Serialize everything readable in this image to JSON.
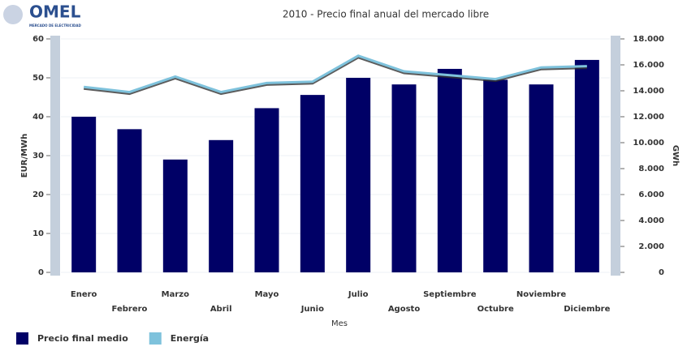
{
  "logo": {
    "name": "OMEL",
    "subtitle": "MERCADO DE ELECTRICIDAD"
  },
  "chart_data": {
    "type": "bar-line",
    "title": "2010 - Precio final anual del mercado libre",
    "x_label": "Mes",
    "y_label": "EUR/MWh",
    "y2_label": "GWh",
    "categories": [
      "Enero",
      "Febrero",
      "Marzo",
      "Abril",
      "Mayo",
      "Junio",
      "Julio",
      "Agosto",
      "Septiembre",
      "Octubre",
      "Noviembre",
      "Diciembre"
    ],
    "series": [
      {
        "name": "Precio final medio",
        "color": "#000066",
        "type": "bar",
        "values": [
          40,
          36.8,
          29,
          34,
          42.2,
          45.6,
          50,
          48.3,
          52.3,
          49.5,
          48.3,
          54.6
        ]
      },
      {
        "name": "Energía",
        "color": "#7ec2dc",
        "type": "line",
        "axis": "y2",
        "values": [
          14300,
          13900,
          15100,
          13900,
          14600,
          14700,
          16700,
          15500,
          15200,
          14900,
          15800,
          15900
        ]
      }
    ],
    "ylim": [
      0,
      60
    ],
    "yticks": [
      0,
      10,
      20,
      30,
      40,
      50,
      60
    ],
    "y2lim": [
      0,
      18000
    ],
    "y2ticks": [
      0,
      {
        "value": 2000,
        "label": "2.000"
      },
      {
        "value": 4000,
        "label": "4.000"
      },
      {
        "value": 6000,
        "label": "6.000"
      },
      {
        "value": 8000,
        "label": "8.000"
      },
      {
        "value": 10000,
        "label": "10.000"
      },
      {
        "value": 12000,
        "label": "12.000"
      },
      {
        "value": 14000,
        "label": "14.000"
      },
      {
        "value": 16000,
        "label": "16.000"
      },
      {
        "value": 18000,
        "label": "18.000"
      }
    ],
    "grid": true
  }
}
